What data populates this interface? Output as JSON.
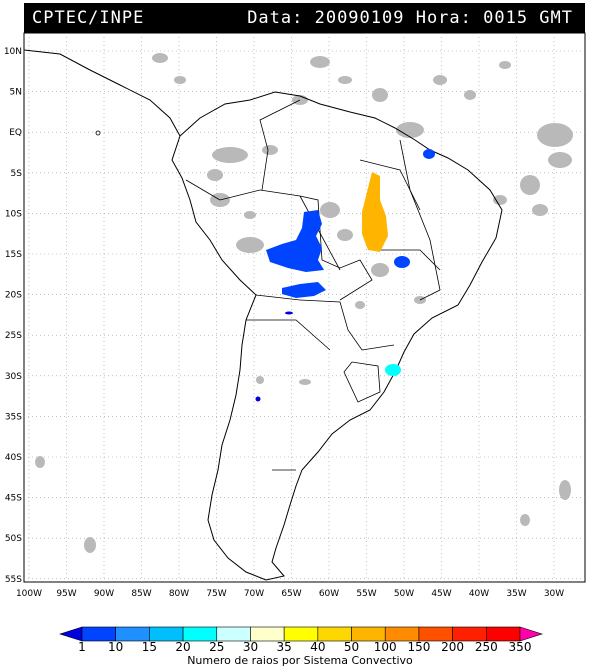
{
  "header": {
    "source": "CPTEC/INPE",
    "datetime": "Data: 20090109 Hora: 0015 GMT"
  },
  "map": {
    "lat_labels": [
      "10N",
      "5N",
      "EQ",
      "5S",
      "10S",
      "15S",
      "20S",
      "25S",
      "30S",
      "35S",
      "40S",
      "45S",
      "50S",
      "55S"
    ],
    "lon_labels": [
      "100W",
      "95W",
      "90W",
      "85W",
      "80W",
      "75W",
      "70W",
      "65W",
      "60W",
      "55W",
      "50W",
      "45W",
      "40W",
      "35W",
      "30W"
    ]
  },
  "colorbar": {
    "labels": [
      "1",
      "10",
      "15",
      "20",
      "25",
      "30",
      "35",
      "40",
      "50",
      "100",
      "150",
      "200",
      "250",
      "350"
    ],
    "colors": [
      "#0000e0",
      "#0044ff",
      "#1e90ff",
      "#00bfff",
      "#00ffff",
      "#ccffff",
      "#ffffcc",
      "#ffff00",
      "#ffd700",
      "#ffb400",
      "#ff8c00",
      "#ff5000",
      "#ff2000",
      "#ff0000",
      "#ff00aa"
    ],
    "title": "Numero de raios por Sistema Convectivo"
  }
}
